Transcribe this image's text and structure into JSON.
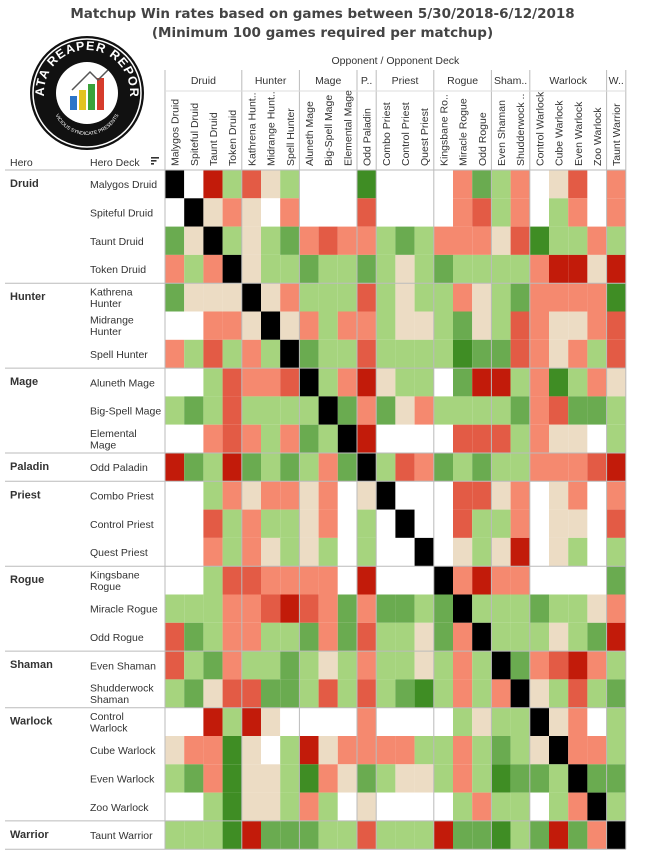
{
  "title_line1": "Matchup Win rates based on games between 5/30/2018-6/12/2018",
  "title_line2": "(Minimum 100 games required per matchup)",
  "logo": {
    "text": "DATA REAPER REPORT",
    "subtext": "VICIOUS SYNDICATE PRESENTS",
    "colors": {
      "bg": "#111111",
      "ring": "#ffffff",
      "bar1": "#2b74c9",
      "bar2": "#e4c322",
      "bar3": "#3aa23a",
      "bar4": "#d63c2c"
    }
  },
  "header": {
    "opponent": "Opponent",
    "separator": "/",
    "opponent_deck": "Opponent Deck",
    "hero_col": "Hero",
    "deck_col": "Hero Deck",
    "sort_icon": "sort-icon"
  },
  "colors": {
    "black": "#000000",
    "dark_green": "#3f8d24",
    "med_green": "#6aab50",
    "light_green": "#a6d47e",
    "neutral": "#ecdcc4",
    "light_red": "#f5896f",
    "med_red": "#e35b45",
    "dark_red": "#c21b0a",
    "white": "#ffffff"
  },
  "chart_data": {
    "type": "heatmap",
    "title": "Matchup Win rates based on games between 5/30/2018-6/12/2018",
    "subtitle": "(Minimum 100 games required per matchup)",
    "xlabel": "Opponent / Opponent Deck",
    "ylabel": "Hero / Hero Deck",
    "value_scale": "win-rate category: -3 strong loss (dark red) ... 0 even (beige) ... +3 strong win (dark green); null = fewer than 100 games; X = mirror",
    "groups": [
      {
        "hero": "Druid",
        "short": "Druid",
        "decks": [
          "Malygos Druid",
          "Spiteful Druid",
          "Taunt Druid",
          "Token Druid"
        ]
      },
      {
        "hero": "Hunter",
        "short": "Hunter",
        "decks": [
          "Kathrena Hunter",
          "Midrange Hunter",
          "Spell Hunter"
        ]
      },
      {
        "hero": "Mage",
        "short": "Mage",
        "decks": [
          "Aluneth Mage",
          "Big-Spell Mage",
          "Elemental Mage"
        ]
      },
      {
        "hero": "Paladin",
        "short": "P..",
        "decks": [
          "Odd Paladin"
        ]
      },
      {
        "hero": "Priest",
        "short": "Priest",
        "decks": [
          "Combo Priest",
          "Control Priest",
          "Quest Priest"
        ]
      },
      {
        "hero": "Rogue",
        "short": "Rogue",
        "decks": [
          "Kingsbane Rogue",
          "Miracle Rogue",
          "Odd Rogue"
        ]
      },
      {
        "hero": "Shaman",
        "short": "Sham..",
        "decks": [
          "Even Shaman",
          "Shudderwock Shaman"
        ]
      },
      {
        "hero": "Warlock",
        "short": "Warlock",
        "decks": [
          "Control Warlock",
          "Cube Warlock",
          "Even Warlock",
          "Zoo Warlock"
        ]
      },
      {
        "hero": "Warrior",
        "short": "W..",
        "decks": [
          "Taunt Warrior"
        ]
      }
    ],
    "column_labels": [
      "Malygos Druid",
      "Spiteful Druid",
      "Taunt Druid",
      "Token Druid",
      "Kathrena Hunt..",
      "Midrange Hunt..",
      "Spell Hunter",
      "Aluneth Mage",
      "Big-Spell Mage",
      "Elemental Mage",
      "Odd Paladin",
      "Combo Priest",
      "Control Priest",
      "Quest Priest",
      "Kingsbane Ro..",
      "Miracle Rogue",
      "Odd Rogue",
      "Even Shaman",
      "Shudderwock ..",
      "Control Warlock",
      "Cube Warlock",
      "Even Warlock",
      "Zoo Warlock",
      "Taunt Warrior"
    ],
    "row_labels": [
      "Malygos Druid",
      "Spiteful Druid",
      "Taunt Druid",
      "Token Druid",
      "Kathrena\nHunter",
      "Midrange\nHunter",
      "Spell Hunter",
      "Aluneth Mage",
      "Big-Spell Mage",
      "Elemental\nMage",
      "Odd Paladin",
      "Combo Priest",
      "Control Priest",
      "Quest Priest",
      "Kingsbane\nRogue",
      "Miracle Rogue",
      "Odd Rogue",
      "Even Shaman",
      "Shudderwock\nShaman",
      "Control\nWarlock",
      "Cube Warlock",
      "Even Warlock",
      "Zoo Warlock",
      "Taunt Warrior"
    ],
    "matrix": [
      [
        "X",
        null,
        -3,
        1,
        -2,
        0,
        1,
        null,
        null,
        null,
        3,
        null,
        null,
        null,
        null,
        -1,
        2,
        1,
        -1,
        null,
        0,
        -2,
        null,
        -1
      ],
      [
        null,
        "X",
        0,
        -1,
        0,
        null,
        -1,
        null,
        null,
        null,
        -2,
        null,
        null,
        null,
        null,
        -1,
        -2,
        1,
        -1,
        null,
        1,
        -1,
        null,
        -1
      ],
      [
        2,
        0,
        "X",
        1,
        0,
        1,
        2,
        -1,
        -2,
        -1,
        -1,
        1,
        2,
        1,
        -1,
        -1,
        -1,
        0,
        -2,
        3,
        1,
        1,
        -1,
        1
      ],
      [
        -1,
        1,
        -1,
        "X",
        0,
        1,
        1,
        2,
        1,
        1,
        2,
        1,
        0,
        1,
        2,
        1,
        1,
        1,
        1,
        -1,
        -3,
        -3,
        0,
        -3
      ],
      [
        2,
        0,
        0,
        0,
        "X",
        0,
        -1,
        1,
        1,
        1,
        -2,
        1,
        0,
        1,
        1,
        -1,
        0,
        1,
        2,
        -1,
        -1,
        -1,
        -1,
        3
      ],
      [
        null,
        null,
        -1,
        -1,
        0,
        "X",
        0,
        -1,
        1,
        -1,
        -1,
        1,
        0,
        0,
        1,
        2,
        0,
        1,
        -2,
        -1,
        0,
        0,
        -1,
        -2
      ],
      [
        -1,
        1,
        -2,
        1,
        -1,
        1,
        "X",
        2,
        1,
        1,
        -2,
        1,
        1,
        1,
        1,
        3,
        2,
        2,
        -2,
        -1,
        0,
        -1,
        1,
        -2
      ],
      [
        null,
        null,
        1,
        -2,
        -1,
        -1,
        -2,
        "X",
        1,
        -1,
        -3,
        0,
        1,
        1,
        null,
        2,
        -3,
        -3,
        1,
        -1,
        3,
        1,
        -1,
        0
      ],
      [
        1,
        2,
        1,
        -2,
        1,
        1,
        1,
        1,
        "X",
        2,
        -1,
        2,
        0,
        -1,
        1,
        1,
        1,
        1,
        2,
        -1,
        -2,
        2,
        2,
        1
      ],
      [
        null,
        null,
        -1,
        -2,
        -1,
        1,
        -1,
        2,
        1,
        "X",
        -3,
        null,
        null,
        null,
        null,
        -2,
        -2,
        -2,
        1,
        -1,
        0,
        0,
        null,
        1
      ],
      [
        -3,
        2,
        1,
        -3,
        2,
        1,
        2,
        1,
        -1,
        2,
        "X",
        1,
        -2,
        -1,
        2,
        1,
        2,
        1,
        1,
        -1,
        -1,
        -1,
        -2,
        -3
      ],
      [
        null,
        null,
        1,
        -1,
        0,
        -1,
        -1,
        0,
        -1,
        null,
        0,
        "X",
        null,
        null,
        null,
        -2,
        -2,
        0,
        -1,
        null,
        0,
        -1,
        null,
        -1
      ],
      [
        null,
        null,
        -2,
        1,
        -1,
        1,
        1,
        0,
        -1,
        null,
        1,
        null,
        "X",
        null,
        null,
        -2,
        1,
        1,
        -1,
        null,
        0,
        0,
        null,
        -2
      ],
      [
        null,
        null,
        -1,
        1,
        -1,
        0,
        1,
        0,
        1,
        null,
        1,
        null,
        null,
        "X",
        null,
        0,
        1,
        0,
        -3,
        null,
        0,
        1,
        null,
        1
      ],
      [
        null,
        null,
        1,
        -2,
        -2,
        -1,
        -1,
        -1,
        -1,
        null,
        -3,
        null,
        null,
        null,
        "X",
        -1,
        -3,
        -1,
        -1,
        null,
        null,
        null,
        null,
        2
      ],
      [
        1,
        1,
        1,
        -1,
        -1,
        -2,
        -3,
        -2,
        -1,
        2,
        -1,
        2,
        2,
        1,
        2,
        "X",
        1,
        1,
        1,
        2,
        1,
        1,
        0,
        -1
      ],
      [
        -2,
        2,
        1,
        -1,
        -1,
        1,
        1,
        2,
        -1,
        2,
        -2,
        1,
        1,
        0,
        2,
        -1,
        "X",
        1,
        1,
        1,
        0,
        1,
        2,
        -3
      ],
      [
        -2,
        1,
        2,
        -1,
        1,
        1,
        2,
        1,
        0,
        1,
        -1,
        1,
        1,
        0,
        1,
        -1,
        1,
        "X",
        2,
        -1,
        -2,
        -3,
        -1,
        1
      ],
      [
        1,
        2,
        0,
        -2,
        -2,
        2,
        2,
        1,
        -2,
        1,
        -2,
        1,
        2,
        3,
        1,
        -1,
        1,
        -1,
        "X",
        0,
        1,
        -2,
        1,
        2
      ],
      [
        null,
        null,
        -3,
        1,
        -3,
        0,
        null,
        null,
        null,
        null,
        -1,
        null,
        null,
        null,
        null,
        1,
        0,
        1,
        1,
        "X",
        0,
        -1,
        null,
        1
      ],
      [
        0,
        -1,
        -1,
        3,
        0,
        null,
        1,
        -3,
        0,
        -1,
        -1,
        -1,
        -1,
        1,
        1,
        -1,
        1,
        2,
        1,
        0,
        "X",
        -1,
        -1,
        1
      ],
      [
        1,
        2,
        -1,
        3,
        0,
        0,
        1,
        3,
        -1,
        0,
        2,
        1,
        0,
        0,
        1,
        -1,
        1,
        3,
        2,
        2,
        1,
        "X",
        2,
        2
      ],
      [
        null,
        null,
        1,
        3,
        0,
        0,
        1,
        -1,
        1,
        null,
        0,
        null,
        null,
        null,
        null,
        1,
        -1,
        1,
        1,
        null,
        1,
        -1,
        "X",
        1
      ],
      [
        1,
        1,
        1,
        3,
        -3,
        2,
        2,
        2,
        1,
        1,
        -2,
        1,
        1,
        1,
        -3,
        2,
        2,
        3,
        1,
        2,
        -3,
        2,
        -1,
        "X"
      ]
    ]
  }
}
